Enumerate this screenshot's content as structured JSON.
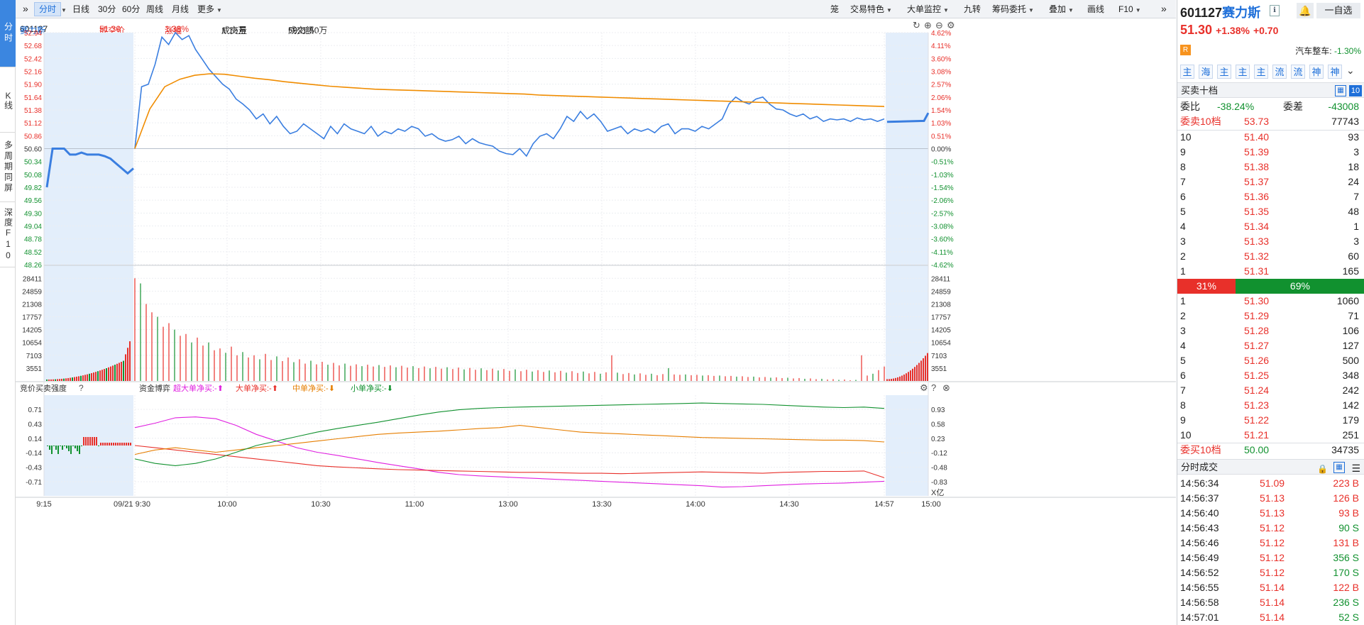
{
  "left_tabs": [
    {
      "label": "分时",
      "active": true
    },
    {
      "label": "K线",
      "active": false
    },
    {
      "label": "多周期同屏",
      "active": false
    },
    {
      "label": "深度F10",
      "active": false
    }
  ],
  "toolbar": {
    "left": [
      {
        "label": "分时",
        "active": true,
        "dropdown": false
      },
      {
        "label": "",
        "dropdown": true
      },
      {
        "label": "日线"
      },
      {
        "label": "30分"
      },
      {
        "label": "60分"
      },
      {
        "label": "周线"
      },
      {
        "label": "月线"
      },
      {
        "label": "更多",
        "dropdown": true
      }
    ],
    "right": [
      {
        "label": "笼"
      },
      {
        "label": "交易特色",
        "dropdown": true
      },
      {
        "label": "大单监控",
        "dropdown": true
      },
      {
        "label": "九转"
      },
      {
        "label": "筹码委托",
        "dropdown": true
      },
      {
        "label": "叠加",
        "dropdown": true
      },
      {
        "label": "画线"
      },
      {
        "label": "F10",
        "dropdown": true
      }
    ]
  },
  "info": {
    "code": "601127",
    "name": "赛力斯",
    "price_label": "成交价",
    "price": "51.30",
    "chg_label": "涨幅",
    "chg": "1.38%",
    "vol_label": "成交量",
    "vol": "1.15万",
    "amt_label": "成交额",
    "amt": "5921.50万"
  },
  "price_axis": {
    "left": [
      "52.94",
      "52.68",
      "52.42",
      "52.16",
      "51.90",
      "51.64",
      "51.38",
      "51.12",
      "50.86",
      "50.60",
      "50.34",
      "50.08",
      "49.82",
      "49.56",
      "49.30",
      "49.04",
      "48.78",
      "48.52",
      "48.26"
    ],
    "right": [
      "4.62%",
      "4.11%",
      "3.60%",
      "3.08%",
      "2.57%",
      "2.06%",
      "1.54%",
      "1.03%",
      "0.51%",
      "0.00%",
      "-0.51%",
      "-1.03%",
      "-1.54%",
      "-2.06%",
      "-2.57%",
      "-3.08%",
      "-3.60%",
      "-4.11%",
      "-4.62%"
    ]
  },
  "vol_axis": [
    "28411",
    "24859",
    "21308",
    "17757",
    "14205",
    "10654",
    "7103",
    "3551"
  ],
  "flow_panel": {
    "left_title": "竞价买卖强度",
    "title": "资金博弈",
    "legend": [
      {
        "label": "超大单净买:-",
        "color": "#e020e0",
        "dir": "up"
      },
      {
        "label": "大单净买:-",
        "color": "#e8302a",
        "dir": "up"
      },
      {
        "label": "中单净买:-",
        "color": "#e67e00",
        "dir": "down"
      },
      {
        "label": "小单净买:-",
        "color": "#11912f",
        "dir": "down"
      }
    ],
    "left_axis": [
      "0.71",
      "0.43",
      "0.14",
      "-0.14",
      "-0.43",
      "-0.71"
    ],
    "right_axis": [
      "0.93",
      "0.58",
      "0.23",
      "-0.12",
      "-0.48",
      "-0.83"
    ],
    "unit": "X亿"
  },
  "time_axis": [
    "9:15",
    "09/21 9:30",
    "10:00",
    "10:30",
    "11:00",
    "13:00",
    "13:30",
    "14:00",
    "14:30",
    "14:57",
    "15:00"
  ],
  "chart_data": {
    "type": "line",
    "prev_close": 50.6,
    "price": [
      50.6,
      51.85,
      51.9,
      52.3,
      52.85,
      52.7,
      52.94,
      52.8,
      52.88,
      52.6,
      52.4,
      52.2,
      52.05,
      51.9,
      51.8,
      51.6,
      51.5,
      51.38,
      51.2,
      51.3,
      51.1,
      51.25,
      51.05,
      50.9,
      50.95,
      51.1,
      51.0,
      50.9,
      50.8,
      51.05,
      50.9,
      51.1,
      51.0,
      50.95,
      50.9,
      51.05,
      50.85,
      50.95,
      50.9,
      51.0,
      50.95,
      51.05,
      51.0,
      50.85,
      50.9,
      50.8,
      50.75,
      50.78,
      50.85,
      50.7,
      50.8,
      50.72,
      50.68,
      50.65,
      50.55,
      50.5,
      50.48,
      50.6,
      50.45,
      50.7,
      50.85,
      50.9,
      50.8,
      51.0,
      51.25,
      51.15,
      51.35,
      51.2,
      51.3,
      51.15,
      50.95,
      51.0,
      51.05,
      50.9,
      51.0,
      50.95,
      51.0,
      50.92,
      51.05,
      51.1,
      50.9,
      51.0,
      51.0,
      50.95,
      51.05,
      51.0,
      51.1,
      51.2,
      51.5,
      51.64,
      51.55,
      51.5,
      51.6,
      51.64,
      51.5,
      51.4,
      51.38,
      51.3,
      51.25,
      51.3,
      51.2,
      51.25,
      51.15,
      51.2,
      51.18,
      51.2,
      51.15,
      51.22,
      51.18,
      51.2,
      51.15,
      51.2
    ],
    "avg": [
      50.6,
      51.4,
      51.85,
      52.0,
      52.08,
      52.11,
      52.1,
      52.06,
      52.02,
      51.99,
      51.95,
      51.92,
      51.89,
      51.86,
      51.84,
      51.82,
      51.8,
      51.79,
      51.78,
      51.77,
      51.76,
      51.75,
      51.74,
      51.73,
      51.72,
      51.71,
      51.7,
      51.68,
      51.67,
      51.66,
      51.65,
      51.64,
      51.63,
      51.62,
      51.61,
      51.6,
      51.59,
      51.58,
      51.57,
      51.56,
      51.55,
      51.54,
      51.53,
      51.52,
      51.51,
      51.5,
      51.49,
      51.48,
      51.47,
      51.46,
      51.45
    ],
    "auction_price": [
      49.82,
      50.6,
      50.6,
      50.6,
      50.48,
      50.48,
      50.52,
      50.48,
      50.48,
      50.48,
      50.45,
      50.4,
      50.3,
      50.2,
      50.1,
      50.2
    ],
    "volume": [
      28411,
      27000,
      21300,
      19000,
      17757,
      15000,
      16000,
      14205,
      12500,
      13000,
      10654,
      12000,
      9800,
      10654,
      8500,
      9000,
      7800,
      9500,
      7103,
      8000,
      6500,
      7103,
      6000,
      7500,
      5800,
      6800,
      5500,
      6500,
      5200,
      6000,
      4800,
      5600,
      4600,
      5300,
      4500,
      5000,
      4300,
      4800,
      4200,
      4600,
      4100,
      4500,
      4000,
      4400,
      3900,
      4300,
      3800,
      4200,
      3700,
      4100,
      3551,
      4000,
      3500,
      3900,
      3400,
      3800,
      3300,
      3700,
      3200,
      3600,
      3100,
      3500,
      3000,
      3400,
      2900,
      3300,
      2800,
      3200,
      2700,
      3100,
      2600,
      3000,
      2500,
      2900,
      2400,
      2800,
      2300,
      2700,
      2200,
      2600,
      2100,
      2500,
      2000,
      2400,
      7103,
      2300,
      1900,
      2200,
      1800,
      2100,
      1700,
      2000,
      1600,
      1900,
      3551,
      1800,
      1700,
      1800,
      1600,
      1700,
      1500,
      1600,
      1400,
      1500,
      1300,
      1400,
      1200,
      1300,
      1100,
      1200,
      1000,
      1100,
      900,
      1000,
      800,
      900,
      700,
      800,
      600,
      700,
      500,
      600,
      400,
      500,
      300,
      400,
      200,
      300,
      7103,
      1500,
      2000,
      3000,
      4000
    ],
    "flow_super": [
      0.5,
      0.6,
      0.72,
      0.74,
      0.7,
      0.55,
      0.35,
      0.2,
      0.05,
      -0.05,
      -0.12,
      -0.2,
      -0.28,
      -0.35,
      -0.42,
      -0.5,
      -0.55,
      -0.58,
      -0.6,
      -0.62,
      -0.64,
      -0.66,
      -0.68,
      -0.7,
      -0.72,
      -0.74,
      -0.76,
      -0.78,
      -0.8,
      -0.83,
      -0.82,
      -0.8,
      -0.78,
      -0.76,
      -0.75,
      -0.74,
      -0.72,
      -0.7
    ],
    "flow_large": [
      0.1,
      0.05,
      0.0,
      -0.05,
      -0.1,
      -0.15,
      -0.2,
      -0.25,
      -0.3,
      -0.35,
      -0.38,
      -0.4,
      -0.42,
      -0.44,
      -0.45,
      -0.46,
      -0.47,
      -0.48,
      -0.49,
      -0.5,
      -0.5,
      -0.51,
      -0.52,
      -0.52,
      -0.53,
      -0.52,
      -0.51,
      -0.5,
      -0.49,
      -0.5,
      -0.51,
      -0.52,
      -0.5,
      -0.49,
      -0.48,
      -0.48,
      -0.47,
      -0.62
    ],
    "flow_mid": [
      -0.1,
      0.0,
      0.05,
      0.0,
      -0.05,
      0.0,
      0.05,
      0.1,
      0.15,
      0.2,
      0.25,
      0.3,
      0.35,
      0.38,
      0.4,
      0.42,
      0.45,
      0.48,
      0.5,
      0.55,
      0.5,
      0.45,
      0.4,
      0.38,
      0.36,
      0.34,
      0.32,
      0.3,
      0.28,
      0.27,
      0.26,
      0.25,
      0.24,
      0.23,
      0.22,
      0.22,
      0.21,
      0.18
    ],
    "flow_small": [
      -0.2,
      -0.3,
      -0.35,
      -0.3,
      -0.2,
      -0.05,
      0.1,
      0.2,
      0.3,
      0.4,
      0.48,
      0.55,
      0.62,
      0.7,
      0.78,
      0.85,
      0.9,
      0.93,
      0.95,
      0.96,
      0.97,
      0.98,
      0.99,
      1.0,
      1.01,
      1.02,
      1.03,
      1.04,
      1.05,
      1.04,
      1.03,
      1.02,
      1.0,
      0.98,
      0.96,
      0.95,
      0.96,
      0.93
    ]
  },
  "right_panel": {
    "code": "601127",
    "name": "赛力斯",
    "price": "51.30",
    "pct": "+1.38%",
    "chg": "+0.70",
    "sector_label": "汽车整车:",
    "sector_pct": "-1.30%",
    "badge": "R",
    "fav_label": "一自选",
    "tags": [
      "主",
      "海",
      "主",
      "主",
      "主",
      "流",
      "流",
      "神",
      "神"
    ],
    "book_title": "买卖十档",
    "book_count": "10",
    "wb_label": "委比",
    "wb": "-38.24%",
    "wc_label": "委差",
    "wc": "-43008",
    "sell_total": {
      "label": "委卖10档",
      "price": "53.73",
      "vol": "77743"
    },
    "asks": [
      {
        "lv": "10",
        "price": "51.40",
        "vol": "93"
      },
      {
        "lv": "9",
        "price": "51.39",
        "vol": "3"
      },
      {
        "lv": "8",
        "price": "51.38",
        "vol": "18"
      },
      {
        "lv": "7",
        "price": "51.37",
        "vol": "24"
      },
      {
        "lv": "6",
        "price": "51.36",
        "vol": "7"
      },
      {
        "lv": "5",
        "price": "51.35",
        "vol": "48"
      },
      {
        "lv": "4",
        "price": "51.34",
        "vol": "1"
      },
      {
        "lv": "3",
        "price": "51.33",
        "vol": "3"
      },
      {
        "lv": "2",
        "price": "51.32",
        "vol": "60"
      },
      {
        "lv": "1",
        "price": "51.31",
        "vol": "165"
      }
    ],
    "ratio_sell": "31%",
    "ratio_buy": "69%",
    "ratio_sell_frac": 0.31,
    "bids": [
      {
        "lv": "1",
        "price": "51.30",
        "vol": "1060"
      },
      {
        "lv": "2",
        "price": "51.29",
        "vol": "71"
      },
      {
        "lv": "3",
        "price": "51.28",
        "vol": "106"
      },
      {
        "lv": "4",
        "price": "51.27",
        "vol": "127"
      },
      {
        "lv": "5",
        "price": "51.26",
        "vol": "500"
      },
      {
        "lv": "6",
        "price": "51.25",
        "vol": "348"
      },
      {
        "lv": "7",
        "price": "51.24",
        "vol": "242"
      },
      {
        "lv": "8",
        "price": "51.23",
        "vol": "142"
      },
      {
        "lv": "9",
        "price": "51.22",
        "vol": "179"
      },
      {
        "lv": "10",
        "price": "51.21",
        "vol": "251"
      }
    ],
    "buy_total": {
      "label": "委买10档",
      "price": "50.00",
      "vol": "34735"
    },
    "ticks_title": "分时成交",
    "ticks": [
      {
        "t": "14:56:34",
        "p": "51.09",
        "v": "223 B",
        "dir": "B"
      },
      {
        "t": "14:56:37",
        "p": "51.13",
        "v": "126 B",
        "dir": "B"
      },
      {
        "t": "14:56:40",
        "p": "51.13",
        "v": "93 B",
        "dir": "B"
      },
      {
        "t": "14:56:43",
        "p": "51.12",
        "v": "90 S",
        "dir": "S"
      },
      {
        "t": "14:56:46",
        "p": "51.12",
        "v": "131 B",
        "dir": "B"
      },
      {
        "t": "14:56:49",
        "p": "51.12",
        "v": "356 S",
        "dir": "S"
      },
      {
        "t": "14:56:52",
        "p": "51.12",
        "v": "170 S",
        "dir": "S"
      },
      {
        "t": "14:56:55",
        "p": "51.14",
        "v": "122 B",
        "dir": "B"
      },
      {
        "t": "14:56:58",
        "p": "51.14",
        "v": "236 S",
        "dir": "S"
      },
      {
        "t": "14:57:01",
        "p": "51.14",
        "v": "52 S",
        "dir": "S"
      }
    ]
  }
}
